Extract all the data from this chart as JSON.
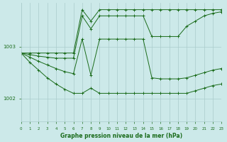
{
  "title": "Graphe pression niveau de la mer (hPa)",
  "background_color": "#cce9e9",
  "grid_color": "#aacccc",
  "line_color": "#1a6b1a",
  "marker_color": "#1a6b1a",
  "x_min": 0,
  "x_max": 23,
  "y_min": 1001.55,
  "y_max": 1003.85,
  "yticks": [
    1002,
    1003
  ],
  "xticks": [
    0,
    1,
    2,
    3,
    4,
    5,
    6,
    7,
    8,
    9,
    10,
    11,
    12,
    13,
    14,
    15,
    16,
    17,
    18,
    19,
    20,
    21,
    22,
    23
  ],
  "series": [
    [
      1002.88,
      1002.88,
      1002.88,
      1002.88,
      1002.88,
      1002.88,
      1002.88,
      1003.72,
      1003.5,
      1003.72,
      1003.72,
      1003.72,
      1003.72,
      1003.72,
      1003.72,
      1003.72,
      1003.72,
      1003.72,
      1003.72,
      1003.72,
      1003.72,
      1003.72,
      1003.72,
      1003.72
    ],
    [
      1002.88,
      1002.85,
      1002.82,
      1002.8,
      1002.78,
      1002.78,
      1002.78,
      1003.6,
      1003.35,
      1003.6,
      1003.6,
      1003.6,
      1003.6,
      1003.6,
      1003.6,
      1003.2,
      1003.2,
      1003.2,
      1003.2,
      1003.4,
      1003.5,
      1003.6,
      1003.65,
      1003.68
    ],
    [
      1002.88,
      1002.8,
      1002.72,
      1002.65,
      1002.58,
      1002.52,
      1002.48,
      1003.15,
      1002.45,
      1003.15,
      1003.15,
      1003.15,
      1003.15,
      1003.15,
      1003.15,
      1002.4,
      1002.38,
      1002.38,
      1002.38,
      1002.4,
      1002.45,
      1002.5,
      1002.55,
      1002.58
    ],
    [
      1002.88,
      1002.7,
      1002.55,
      1002.4,
      1002.28,
      1002.18,
      1002.1,
      1002.1,
      1002.2,
      1002.1,
      1002.1,
      1002.1,
      1002.1,
      1002.1,
      1002.1,
      1002.1,
      1002.1,
      1002.1,
      1002.1,
      1002.1,
      1002.15,
      1002.2,
      1002.25,
      1002.28
    ]
  ]
}
